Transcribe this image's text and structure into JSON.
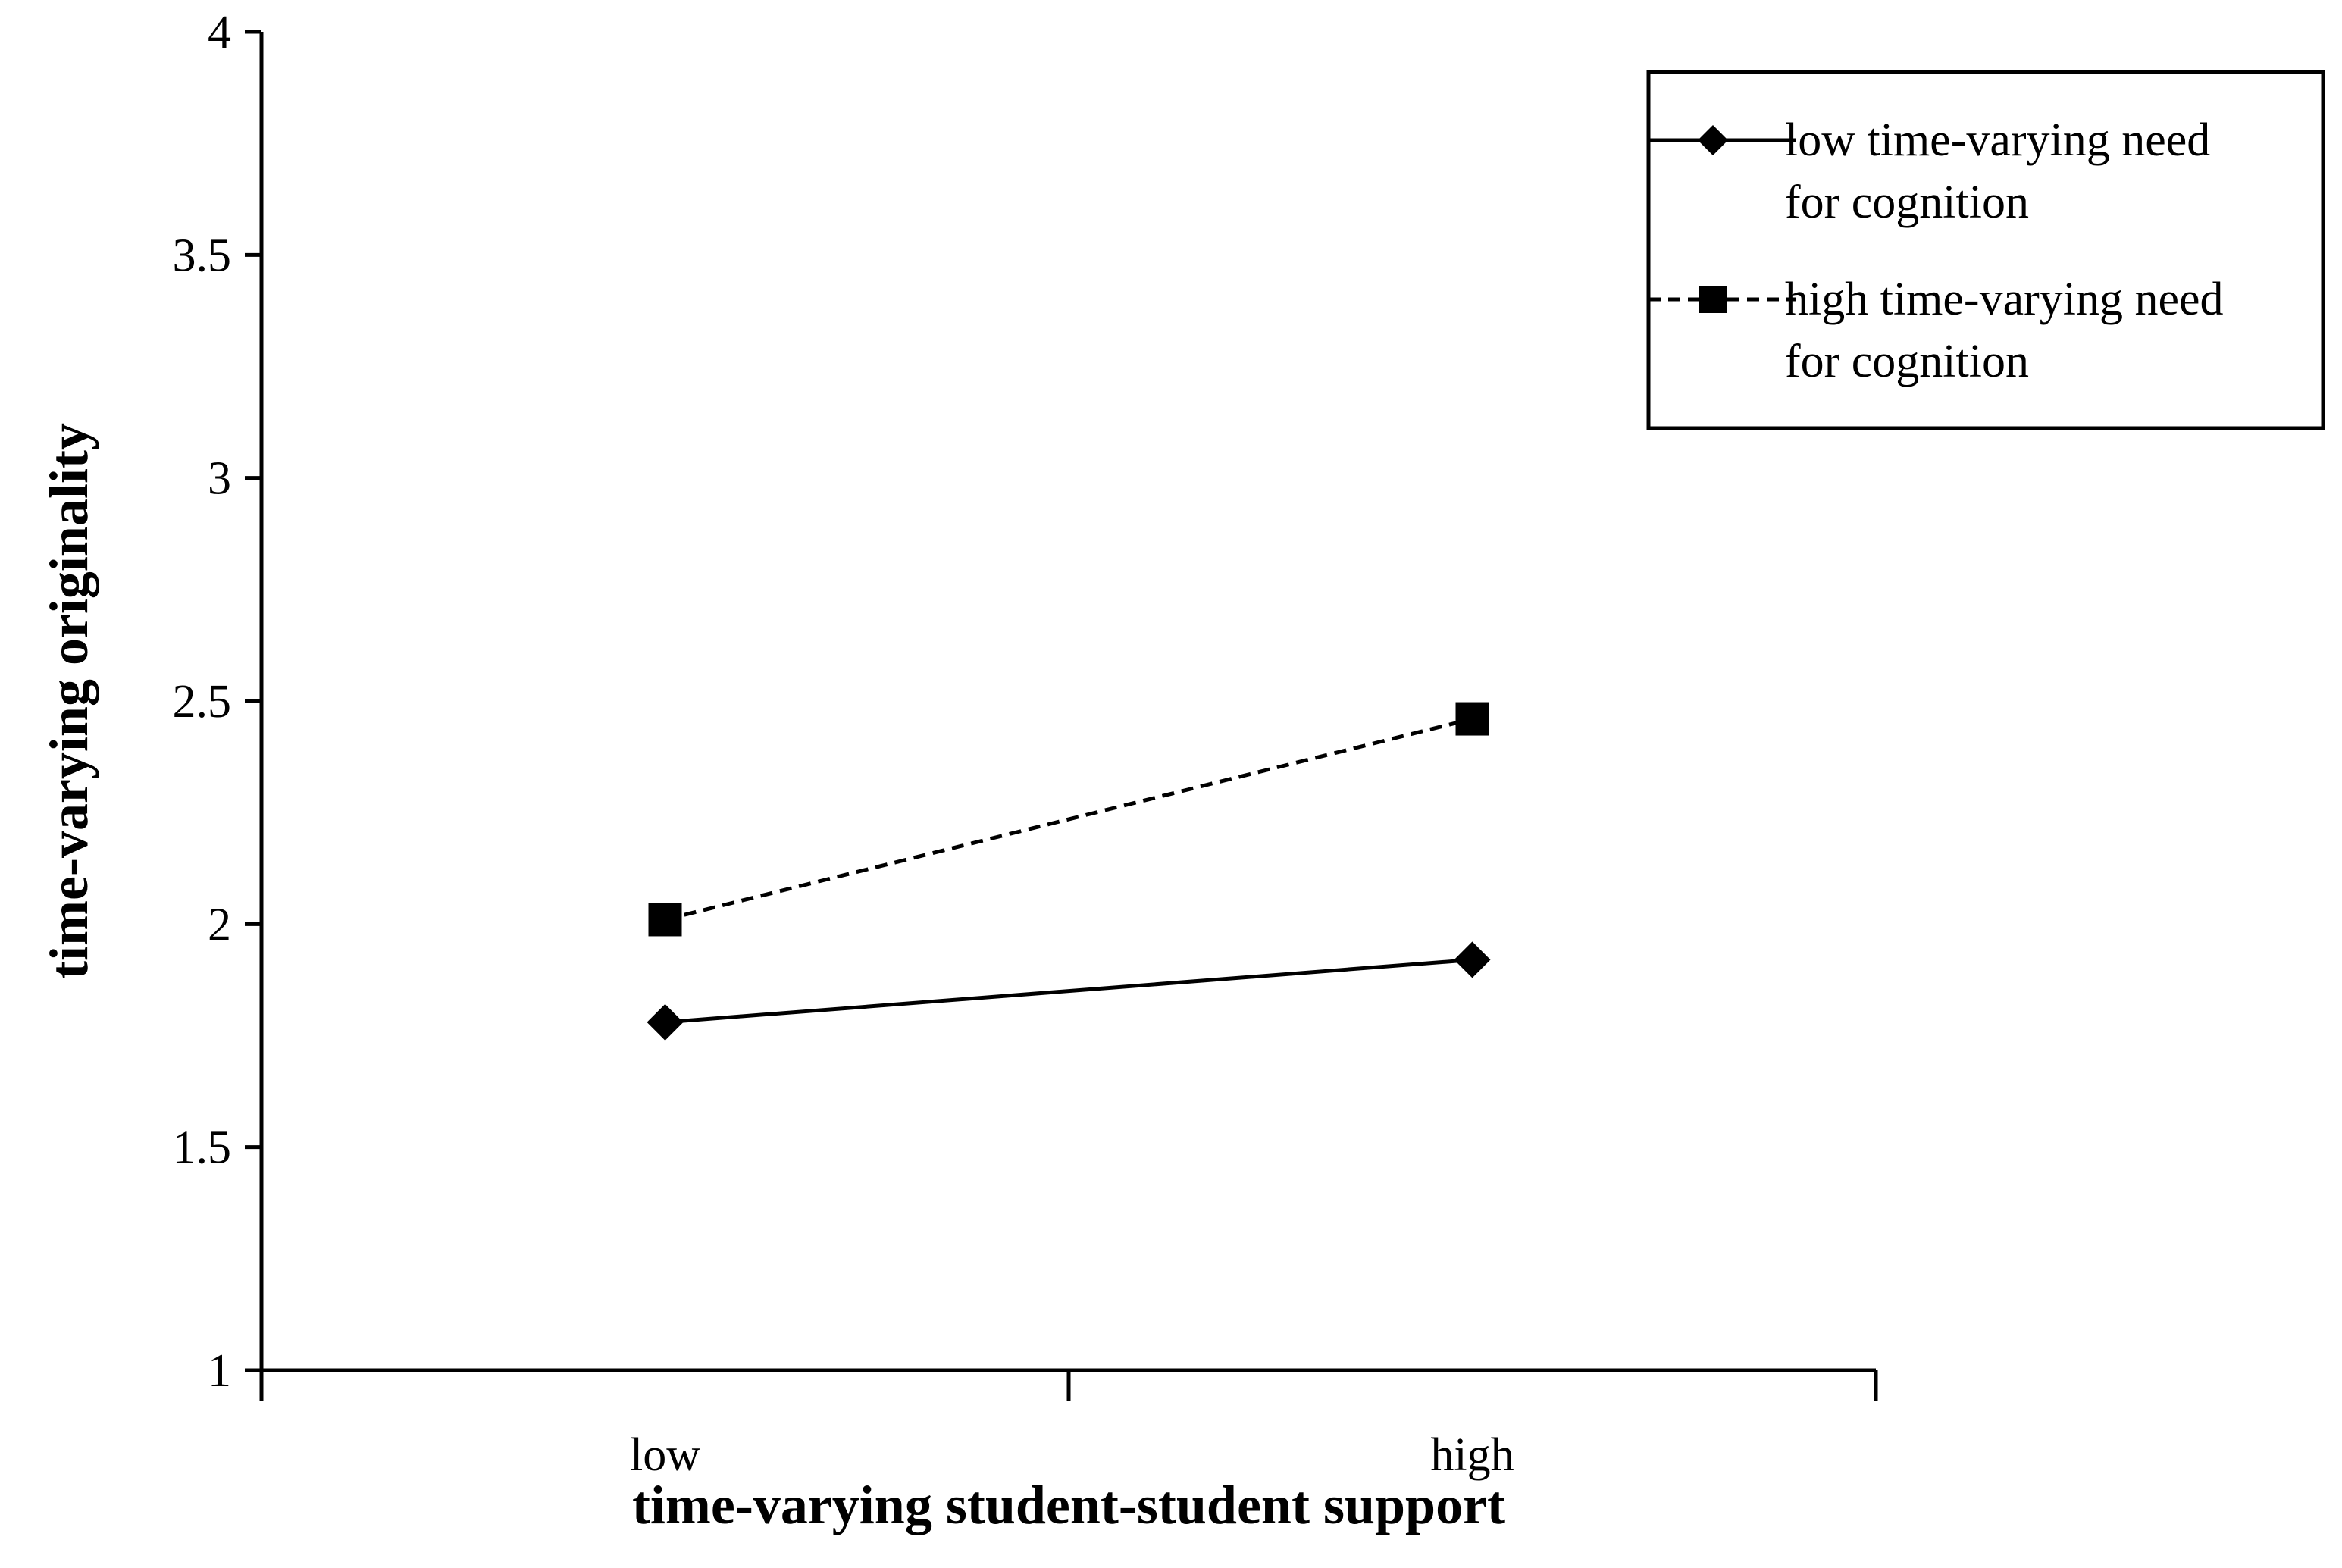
{
  "chart_data": {
    "type": "line",
    "categories": [
      "low",
      "high"
    ],
    "xlabel": "time-varying student-student support",
    "ylabel": "time-varying originality",
    "ylim": [
      1,
      4
    ],
    "yticks": [
      "1",
      "1.5",
      "2",
      "2.5",
      "3",
      "3.5",
      "4"
    ],
    "grid": false,
    "legend_position": "top-right",
    "series": [
      {
        "name_lines": [
          "low time-varying need",
          "for cognition"
        ],
        "values": [
          1.78,
          1.92
        ],
        "marker": "diamond",
        "line_style": "solid",
        "color": "#000000"
      },
      {
        "name_lines": [
          "high time-varying need",
          "for cognition"
        ],
        "values": [
          2.01,
          2.46
        ],
        "marker": "square",
        "line_style": "dashed",
        "color": "#000000"
      }
    ]
  }
}
